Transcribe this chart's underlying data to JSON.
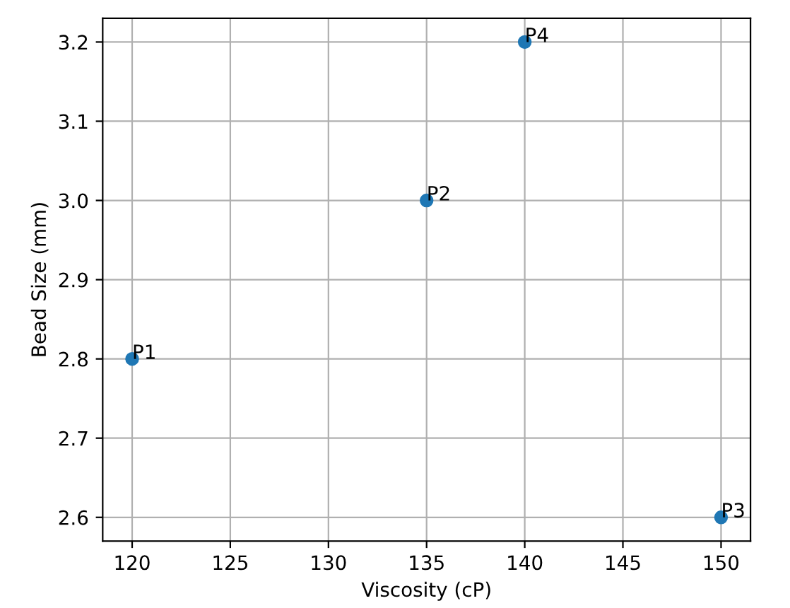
{
  "chart_data": {
    "type": "scatter",
    "xlabel": "Viscosity (cP)",
    "ylabel": "Bead Size (mm)",
    "x": [
      120,
      135,
      150,
      140
    ],
    "series": [
      {
        "color": "#1f77b4",
        "values": [
          2.8,
          3.0,
          2.6,
          3.2
        ]
      }
    ],
    "annotations": [
      {
        "text": "P1",
        "x": 120,
        "y": 2.8
      },
      {
        "text": "P2",
        "x": 135,
        "y": 3.0
      },
      {
        "text": "P3",
        "x": 150,
        "y": 2.6
      },
      {
        "text": "P4",
        "x": 140,
        "y": 3.2
      }
    ],
    "xlim": [
      118.5,
      151.5
    ],
    "ylim": [
      2.57,
      3.23
    ],
    "xticks": [
      120,
      125,
      130,
      135,
      140,
      145,
      150
    ],
    "yticks": [
      {
        "value": 2.6,
        "label": "2.6"
      },
      {
        "value": 2.7,
        "label": "2.7"
      },
      {
        "value": 2.8,
        "label": "2.8"
      },
      {
        "value": 2.9,
        "label": "2.9"
      },
      {
        "value": 3.0,
        "label": "3.0"
      },
      {
        "value": 3.1,
        "label": "3.1"
      },
      {
        "value": 3.2,
        "label": "3.2"
      }
    ],
    "grid": true
  }
}
